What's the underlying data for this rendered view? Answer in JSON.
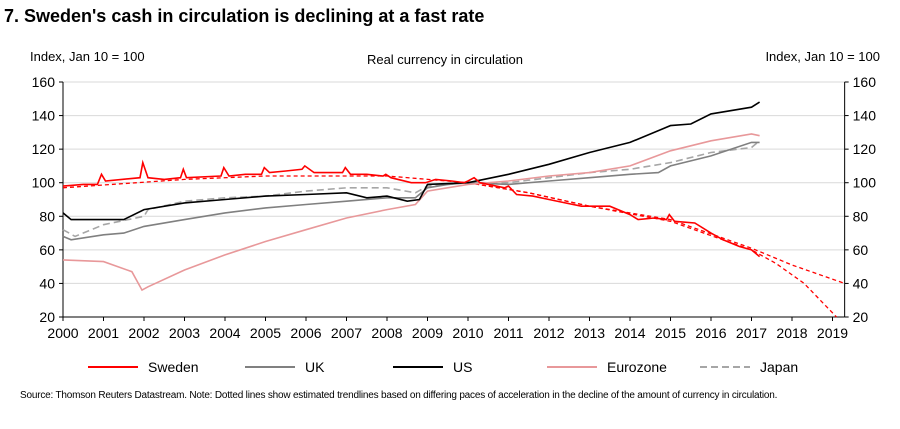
{
  "chart_data": {
    "type": "line",
    "title": "7. Sweden's cash in circulation is declining at a fast rate",
    "subtitle": "Real currency in circulation",
    "ylabel_left": "Index, Jan 10 = 100",
    "ylabel_right": "Index, Jan 10 = 100",
    "ylim": [
      20,
      160
    ],
    "yticks": [
      20,
      40,
      60,
      80,
      100,
      120,
      140,
      160
    ],
    "xlim": [
      2000,
      2019.3
    ],
    "xticks": [
      "2000",
      "2001",
      "2002",
      "2003",
      "2004",
      "2005",
      "2006",
      "2007",
      "2008",
      "2009",
      "2010",
      "2011",
      "2012",
      "2013",
      "2014",
      "2015",
      "2016",
      "2017",
      "2018",
      "2019"
    ],
    "grid": true,
    "legend": "bottom",
    "series": [
      {
        "name": "Sweden",
        "color": "#ff0000",
        "style": "solid",
        "x": [
          2000,
          2000.5,
          2000.85,
          2000.95,
          2001.05,
          2001.9,
          2001.97,
          2002.1,
          2002.5,
          2002.9,
          2002.97,
          2003.05,
          2003.9,
          2003.97,
          2004.1,
          2004.5,
          2004.9,
          2004.97,
          2005.1,
          2005.5,
          2005.9,
          2005.97,
          2006.2,
          2006.6,
          2006.9,
          2006.97,
          2007.1,
          2007.5,
          2007.9,
          2007.97,
          2008.1,
          2008.6,
          2008.95,
          2009.2,
          2009.6,
          2009.9,
          2010,
          2010.15,
          2010.3,
          2010.9,
          2011,
          2011.2,
          2011.6,
          2012,
          2012.4,
          2012.8,
          2013,
          2013.5,
          2014,
          2014.2,
          2014.6,
          2014.9,
          2014.97,
          2015.1,
          2015.6,
          2016,
          2016.3,
          2016.7,
          2017,
          2017.2
        ],
        "y": [
          98,
          99,
          99,
          105,
          101,
          103,
          112,
          103,
          102,
          103,
          108,
          103,
          104,
          109,
          104,
          105,
          105,
          109,
          106,
          107,
          108,
          110,
          106,
          106,
          106,
          109,
          105,
          105,
          104,
          105,
          103,
          100,
          100,
          102,
          101,
          100,
          101,
          103,
          100,
          97,
          98,
          93,
          92,
          90,
          88,
          86,
          86,
          86,
          81,
          78,
          79,
          78,
          81,
          77,
          76,
          70,
          66,
          62,
          60,
          56
        ]
      },
      {
        "name": "UK",
        "color": "#808080",
        "style": "solid",
        "x": [
          2000,
          2000.2,
          2001,
          2001.5,
          2002,
          2003,
          2004,
          2005,
          2006,
          2007,
          2008,
          2008.7,
          2009,
          2009.5,
          2010,
          2011,
          2012,
          2013,
          2014,
          2014.7,
          2015,
          2016,
          2017,
          2017.2
        ],
        "y": [
          68,
          66,
          69,
          70,
          74,
          78,
          82,
          85,
          87,
          89,
          91,
          91,
          97,
          99,
          100,
          99,
          101,
          103,
          105,
          106,
          110,
          116,
          124,
          124
        ]
      },
      {
        "name": "US",
        "color": "#000000",
        "style": "solid",
        "x": [
          2000,
          2000.2,
          2001,
          2001.5,
          2002,
          2003,
          2004,
          2005,
          2006,
          2007,
          2007.5,
          2008,
          2008.5,
          2008.8,
          2009,
          2010,
          2011,
          2012,
          2013,
          2014,
          2015,
          2015.5,
          2016,
          2017,
          2017.2
        ],
        "y": [
          82,
          78,
          78,
          78,
          84,
          88,
          90,
          92,
          93,
          94,
          91,
          92,
          89,
          90,
          99,
          100,
          105,
          111,
          118,
          124,
          134,
          135,
          141,
          145,
          148
        ]
      },
      {
        "name": "Eurozone",
        "color": "#e8989a",
        "style": "solid",
        "x": [
          2000,
          2001,
          2001.7,
          2001.95,
          2002.1,
          2003,
          2004,
          2005,
          2006,
          2007,
          2008,
          2008.7,
          2009,
          2010,
          2011,
          2012,
          2013,
          2014,
          2015,
          2016,
          2017,
          2017.2
        ],
        "y": [
          54,
          53,
          47,
          36,
          38,
          48,
          57,
          65,
          72,
          79,
          84,
          87,
          95,
          99,
          101,
          104,
          106,
          110,
          119,
          125,
          129,
          128
        ]
      },
      {
        "name": "Japan",
        "color": "#a6a6a6",
        "style": "dashed",
        "x": [
          2000,
          2000.3,
          2001,
          2002,
          2002.1,
          2003,
          2004,
          2005,
          2006,
          2007,
          2008,
          2008.7,
          2009,
          2010,
          2011,
          2012,
          2013,
          2014,
          2015,
          2016,
          2017,
          2017.2
        ],
        "y": [
          72,
          68,
          75,
          80,
          84,
          89,
          91,
          92,
          95,
          97,
          97,
          94,
          98,
          100,
          100,
          103,
          106,
          108,
          112,
          118,
          121,
          125
        ]
      }
    ],
    "trendlines": [
      {
        "color": "#ff0000",
        "style": "dotted",
        "x": [
          2000,
          2003,
          2005,
          2008,
          2010,
          2011.5,
          2013,
          2015,
          2017,
          2018,
          2019.3
        ],
        "y": [
          97,
          102,
          104,
          104,
          100,
          94,
          86,
          78,
          61,
          51,
          40
        ]
      },
      {
        "color": "#ff0000",
        "style": "dotted",
        "x": [
          2010,
          2011.5,
          2013,
          2015,
          2017,
          2017.6,
          2018.3,
          2019.1
        ],
        "y": [
          100,
          94,
          86,
          77,
          60,
          52,
          40,
          20
        ]
      }
    ]
  },
  "source": "Source:    Thomson Reuters Datastream. Note: Dotted lines show estimated trendlines based on differing paces of acceleration in the decline of the amount of currency in circulation."
}
